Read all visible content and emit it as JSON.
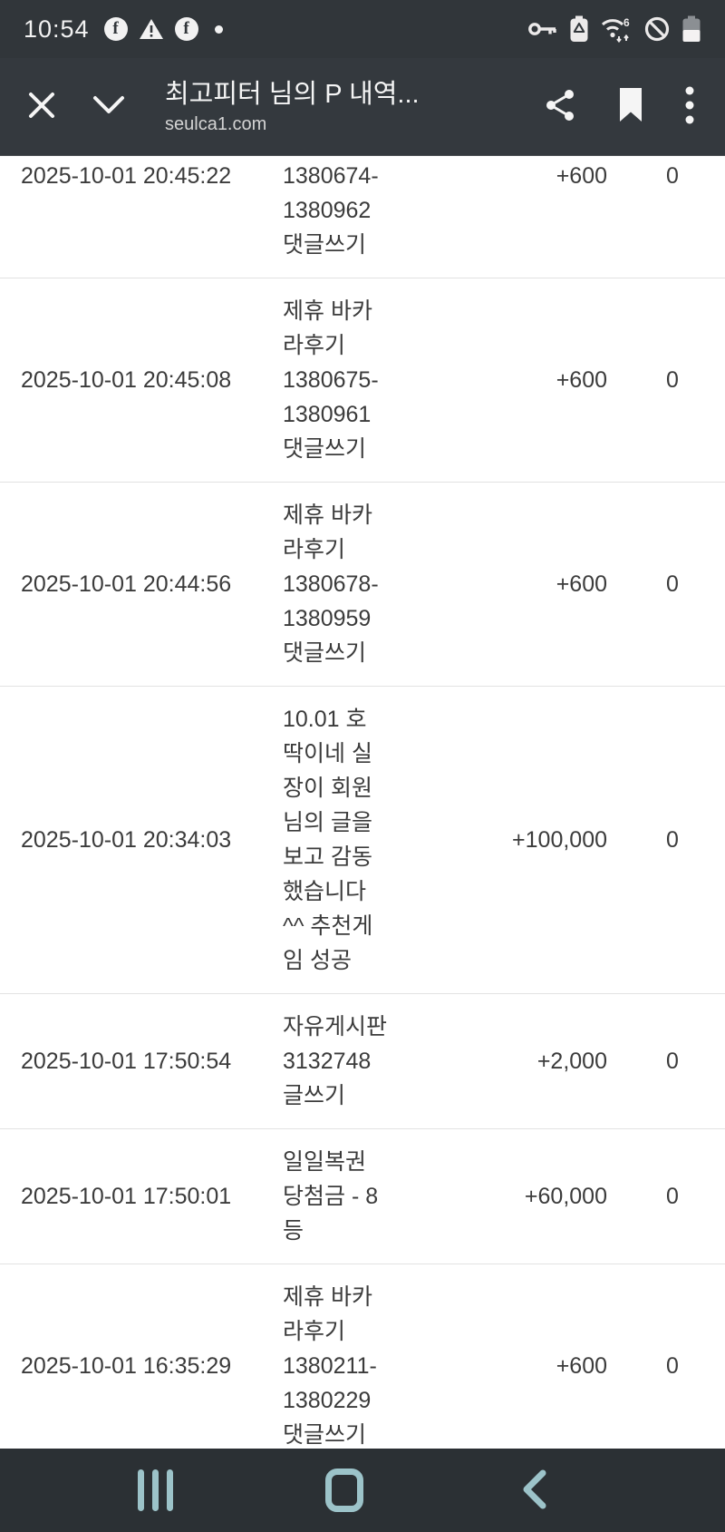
{
  "status_bar": {
    "time": "10:54",
    "left_icons": [
      "facebook-icon",
      "warning-icon",
      "facebook-icon",
      "notification-dot"
    ],
    "right_icons": [
      "vpn-key-icon",
      "battery-saver-icon",
      "wifi-6-icon",
      "no-signal-icon",
      "battery-icon"
    ]
  },
  "header": {
    "title": "최고피터 님의 P 내역...",
    "url": "seulca1.com",
    "close_icon": "close-icon",
    "collapse_icon": "chevron-down-icon",
    "share_icon": "share-icon",
    "bookmark_icon": "bookmark-icon",
    "menu_icon": "kebab-menu-icon"
  },
  "table": {
    "rows": [
      {
        "datetime": "2025-10-01 20:45:22",
        "desc_lines": [
          "1380674-",
          "1380962",
          "댓글쓰기"
        ],
        "amount": "+600",
        "balance": "0"
      },
      {
        "datetime": "2025-10-01 20:45:08",
        "desc_lines": [
          "제휴 바카",
          "라후기",
          "1380675-",
          "1380961",
          "댓글쓰기"
        ],
        "amount": "+600",
        "balance": "0"
      },
      {
        "datetime": "2025-10-01 20:44:56",
        "desc_lines": [
          "제휴 바카",
          "라후기",
          "1380678-",
          "1380959",
          "댓글쓰기"
        ],
        "amount": "+600",
        "balance": "0"
      },
      {
        "datetime": "2025-10-01 20:34:03",
        "desc_lines": [
          "10.01 호",
          "딱이네 실",
          "장이 회원",
          "님의 글을",
          "보고 감동",
          "했습니다",
          "^^ 추천게",
          "임 성공"
        ],
        "amount": "+100,000",
        "balance": "0"
      },
      {
        "datetime": "2025-10-01 17:50:54",
        "desc_lines": [
          "자유게시판",
          "3132748",
          "글쓰기"
        ],
        "amount": "+2,000",
        "balance": "0"
      },
      {
        "datetime": "2025-10-01 17:50:01",
        "desc_lines": [
          "일일복권",
          "당첨금 - 8",
          "등"
        ],
        "amount": "+60,000",
        "balance": "0"
      },
      {
        "datetime": "2025-10-01 16:35:29",
        "desc_lines": [
          "제휴 바카",
          "라후기",
          "1380211-",
          "1380229",
          "댓글쓰기"
        ],
        "amount": "+600",
        "balance": "0"
      }
    ]
  },
  "nav_bar": {
    "buttons": [
      "recents-button",
      "home-button",
      "back-button"
    ]
  },
  "colors": {
    "status_bar_bg": "#31363a",
    "header_bg": "#34393e",
    "nav_bar_bg": "#2b3034",
    "nav_icon": "#9cc3c9",
    "content_bg": "#ffffff",
    "table_text": "#3b3b3b",
    "separator": "#e2e2e2"
  }
}
